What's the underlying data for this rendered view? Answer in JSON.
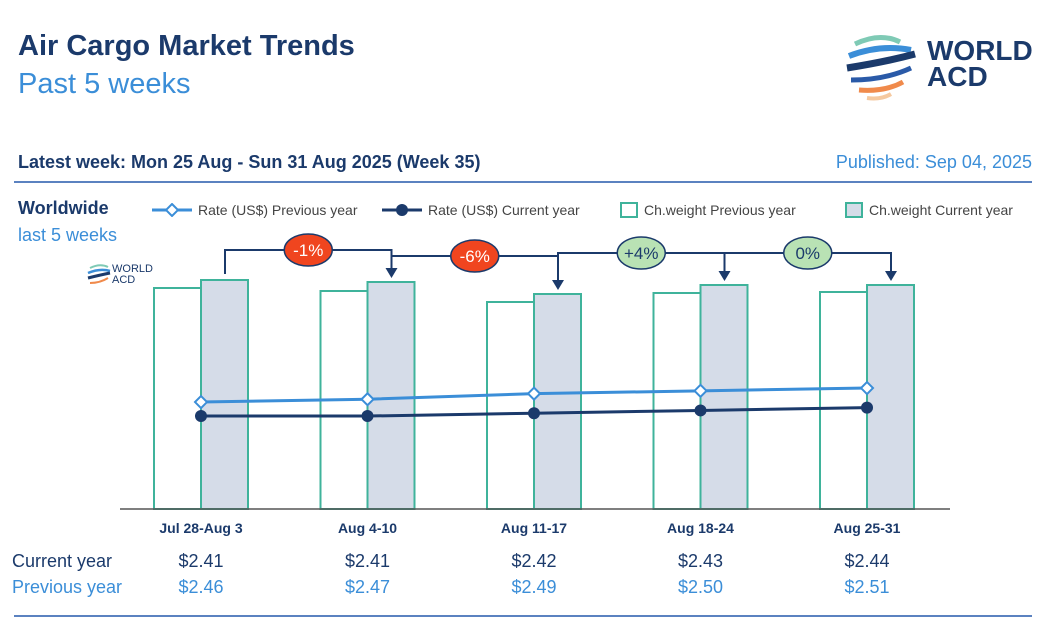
{
  "header": {
    "title": "Air Cargo Market Trends",
    "subtitle": "Past 5 weeks",
    "logo_text": "WORLD ACD",
    "latest_week": "Latest week:   Mon 25 Aug - Sun 31 Aug 2025 (Week 35)",
    "published": "Published: Sep 04, 2025"
  },
  "section": {
    "region": "Worldwide",
    "period": "last 5 weeks"
  },
  "colors": {
    "navy": "#1b3a6b",
    "blue": "#3b8ed8",
    "teal": "#3fb39b",
    "bar_cur": "#d5dce8",
    "neg": "#f0451f",
    "pos": "#b9e2b4"
  },
  "chart_data": {
    "type": "bar",
    "categories": [
      "Jul 28-Aug 3",
      "Aug 4-10",
      "Aug 11-17",
      "Aug 18-24",
      "Aug 25-31"
    ],
    "legend": [
      "Rate (US$) Previous year",
      "Rate (US$) Current year",
      "Ch.weight Previous year",
      "Ch.weight Current year"
    ],
    "legend_position": "top",
    "series": [
      {
        "name": "Ch.weight Previous year",
        "type": "bar",
        "values": [
          221,
          218,
          207,
          216,
          217
        ]
      },
      {
        "name": "Ch.weight Current year",
        "type": "bar",
        "values": [
          229,
          227,
          215,
          224,
          224
        ]
      },
      {
        "name": "Rate (US$) Previous year",
        "type": "line",
        "values": [
          2.46,
          2.47,
          2.49,
          2.5,
          2.51
        ]
      },
      {
        "name": "Rate (US$) Current year",
        "type": "line",
        "values": [
          2.41,
          2.41,
          2.42,
          2.43,
          2.44
        ]
      }
    ],
    "week_changes": [
      "-1%",
      "-6%",
      "+4%",
      "0%"
    ],
    "table": {
      "current_label": "Current year",
      "previous_label": "Previous year",
      "current": [
        "$2.41",
        "$2.41",
        "$2.42",
        "$2.43",
        "$2.44"
      ],
      "previous": [
        "$2.46",
        "$2.47",
        "$2.49",
        "$2.50",
        "$2.51"
      ]
    }
  }
}
